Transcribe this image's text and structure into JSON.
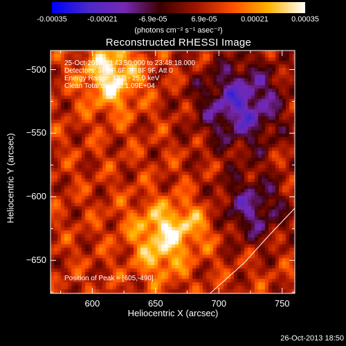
{
  "colorbar": {
    "ticks": [
      "-0.00035",
      "-0.00021",
      "-6.9e-05",
      "6.9e-05",
      "0.00021",
      "0.00035"
    ],
    "units": "(photons cm⁻² s⁻¹ asec⁻²)",
    "stops": [
      "#0000ff",
      "#4b28c8",
      "#7828b4",
      "#3c0000",
      "#a01400",
      "#ff5000",
      "#ffb400",
      "#ffffff"
    ]
  },
  "chart_data": {
    "type": "heatmap",
    "title": "Reconstructed RHESSI Image",
    "xlabel": "Heliocentric X (arcsec)",
    "ylabel": "Heliocentric Y (arcsec)",
    "xlim": [
      567,
      760
    ],
    "ylim": [
      -676,
      -485
    ],
    "xticks": [
      600,
      650,
      700,
      750
    ],
    "yticks": [
      -500,
      -550,
      -600,
      -650
    ],
    "annotations": [
      "25-Oct-2013 23:43:50.000 to 23:48:18.000",
      "Detectors: 3F 5F 6F 7F 8F 9F, Att 0",
      "Energy Range: 12.0 - 25.0 keV",
      "Clean     Total counts: 1.09E+04"
    ],
    "peak_label": "Position of Peak = [605,-490]",
    "peak": [
      605,
      -490
    ],
    "value_range": [
      -0.00035,
      0.00035
    ],
    "limb_curve": [
      [
        693,
        -676
      ],
      [
        720,
        -652
      ],
      [
        740,
        -630
      ],
      [
        760,
        -609
      ]
    ]
  },
  "timestamp": "26-Oct-2013 18:50"
}
